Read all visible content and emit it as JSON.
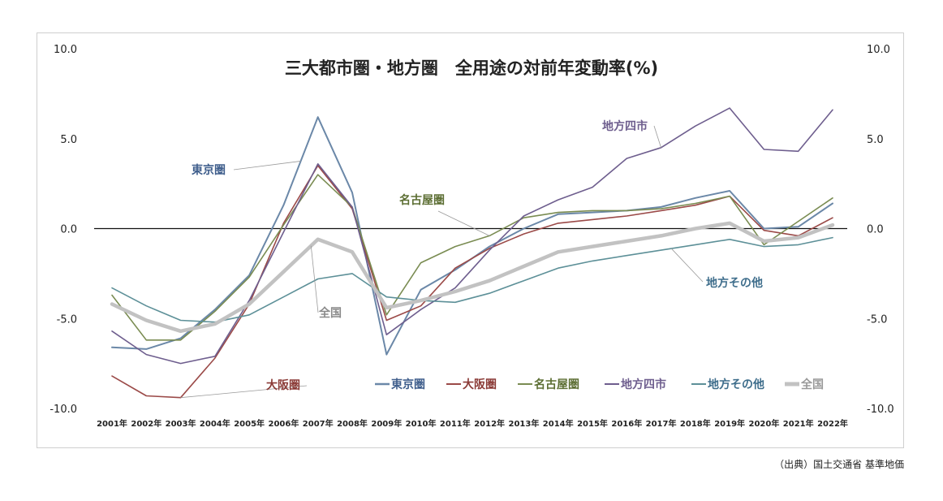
{
  "chart_data": {
    "type": "line",
    "title": "三大都市圏・地方圏　全用途の対前年変動率(%)",
    "categories": [
      "2001年",
      "2002年",
      "2003年",
      "2004年",
      "2005年",
      "2006年",
      "2007年",
      "2008年",
      "2009年",
      "2010年",
      "2011年",
      "2012年",
      "2013年",
      "2014年",
      "2015年",
      "2016年",
      "2017年",
      "2018年",
      "2019年",
      "2020年",
      "2021年",
      "2022年"
    ],
    "ylim": [
      -10,
      10
    ],
    "yticks": [
      "10.0",
      "5.0",
      "0.0",
      "-5.0",
      "-10.0"
    ],
    "yticks_right": [
      "10.0",
      "5.0",
      "0.0",
      "-5.0",
      "-10.0"
    ],
    "zero_line": true,
    "legend_position": "bottom-right",
    "series": [
      {
        "name": "東京圏",
        "color": "#6b88a8",
        "width": 2,
        "values": [
          -6.6,
          -6.7,
          -6.1,
          -4.5,
          -2.6,
          1.3,
          6.2,
          2.0,
          -7.0,
          -3.4,
          -2.3,
          -1.0,
          0.0,
          0.8,
          0.9,
          1.0,
          1.2,
          1.7,
          2.1,
          0.0,
          0.1,
          1.4
        ]
      },
      {
        "name": "大阪圏",
        "color": "#9b4a48",
        "width": 1.6,
        "values": [
          -8.2,
          -9.3,
          -9.4,
          -7.2,
          -4.2,
          0.3,
          3.5,
          1.1,
          -5.1,
          -4.3,
          -2.2,
          -1.1,
          -0.3,
          0.3,
          0.5,
          0.7,
          1.0,
          1.3,
          1.8,
          -0.1,
          -0.4,
          0.6
        ]
      },
      {
        "name": "名古屋圏",
        "color": "#7a8c52",
        "width": 1.6,
        "values": [
          -3.7,
          -6.2,
          -6.2,
          -4.6,
          -2.7,
          0.2,
          3.0,
          1.2,
          -4.8,
          -1.9,
          -1.0,
          -0.4,
          0.6,
          0.9,
          1.0,
          1.0,
          1.1,
          1.4,
          1.8,
          -0.9,
          0.4,
          1.7
        ]
      },
      {
        "name": "地方四市",
        "color": "#6e5e8e",
        "width": 1.6,
        "values": [
          -5.7,
          -7.0,
          -7.5,
          -7.1,
          -4.0,
          -0.2,
          3.6,
          1.2,
          -5.9,
          -4.5,
          -3.3,
          -1.2,
          0.7,
          1.6,
          2.3,
          3.9,
          4.5,
          5.7,
          6.7,
          4.4,
          4.3,
          6.6
        ]
      },
      {
        "name": "地方その他",
        "color": "#5d9098",
        "width": 1.6,
        "values": [
          -3.3,
          -4.3,
          -5.1,
          -5.2,
          -4.8,
          -3.8,
          -2.8,
          -2.5,
          -3.8,
          -4.0,
          -4.1,
          -3.6,
          -2.9,
          -2.2,
          -1.8,
          -1.5,
          -1.2,
          -0.9,
          -0.6,
          -1.0,
          -0.9,
          -0.5
        ]
      },
      {
        "name": "全国",
        "color": "#c2c2c2",
        "width": 4.5,
        "values": [
          -4.2,
          -5.1,
          -5.7,
          -5.3,
          -4.2,
          -2.4,
          -0.6,
          -1.3,
          -4.4,
          -4.0,
          -3.5,
          -2.9,
          -2.1,
          -1.3,
          -1.0,
          -0.7,
          -0.4,
          0.0,
          0.3,
          -0.7,
          -0.5,
          0.2
        ]
      }
    ],
    "annotations": [
      {
        "text": "地方四市",
        "series": "地方四市",
        "color": "#6e5e8e"
      },
      {
        "text": "東京圏",
        "series": "東京圏",
        "color": "#3f5e8c"
      },
      {
        "text": "名古屋圏",
        "series": "名古屋圏",
        "color": "#5c6e33"
      },
      {
        "text": "地方その他",
        "series": "地方その他",
        "color": "#3f6e8c"
      },
      {
        "text": "全国",
        "series": "全国",
        "color": "#8a8a8a"
      },
      {
        "text": "大阪圏",
        "series": "大阪圏",
        "color": "#8a3a36"
      }
    ],
    "legend_text_colors": {
      "東京圏": "#3f5e8c",
      "大阪圏": "#8a3a36",
      "名古屋圏": "#5c6e33",
      "地方四市": "#6e5e8e",
      "地方その他": "#3f6e8c",
      "全国": "#999999"
    }
  },
  "source_note": "（出典）国土交通省 基準地価"
}
